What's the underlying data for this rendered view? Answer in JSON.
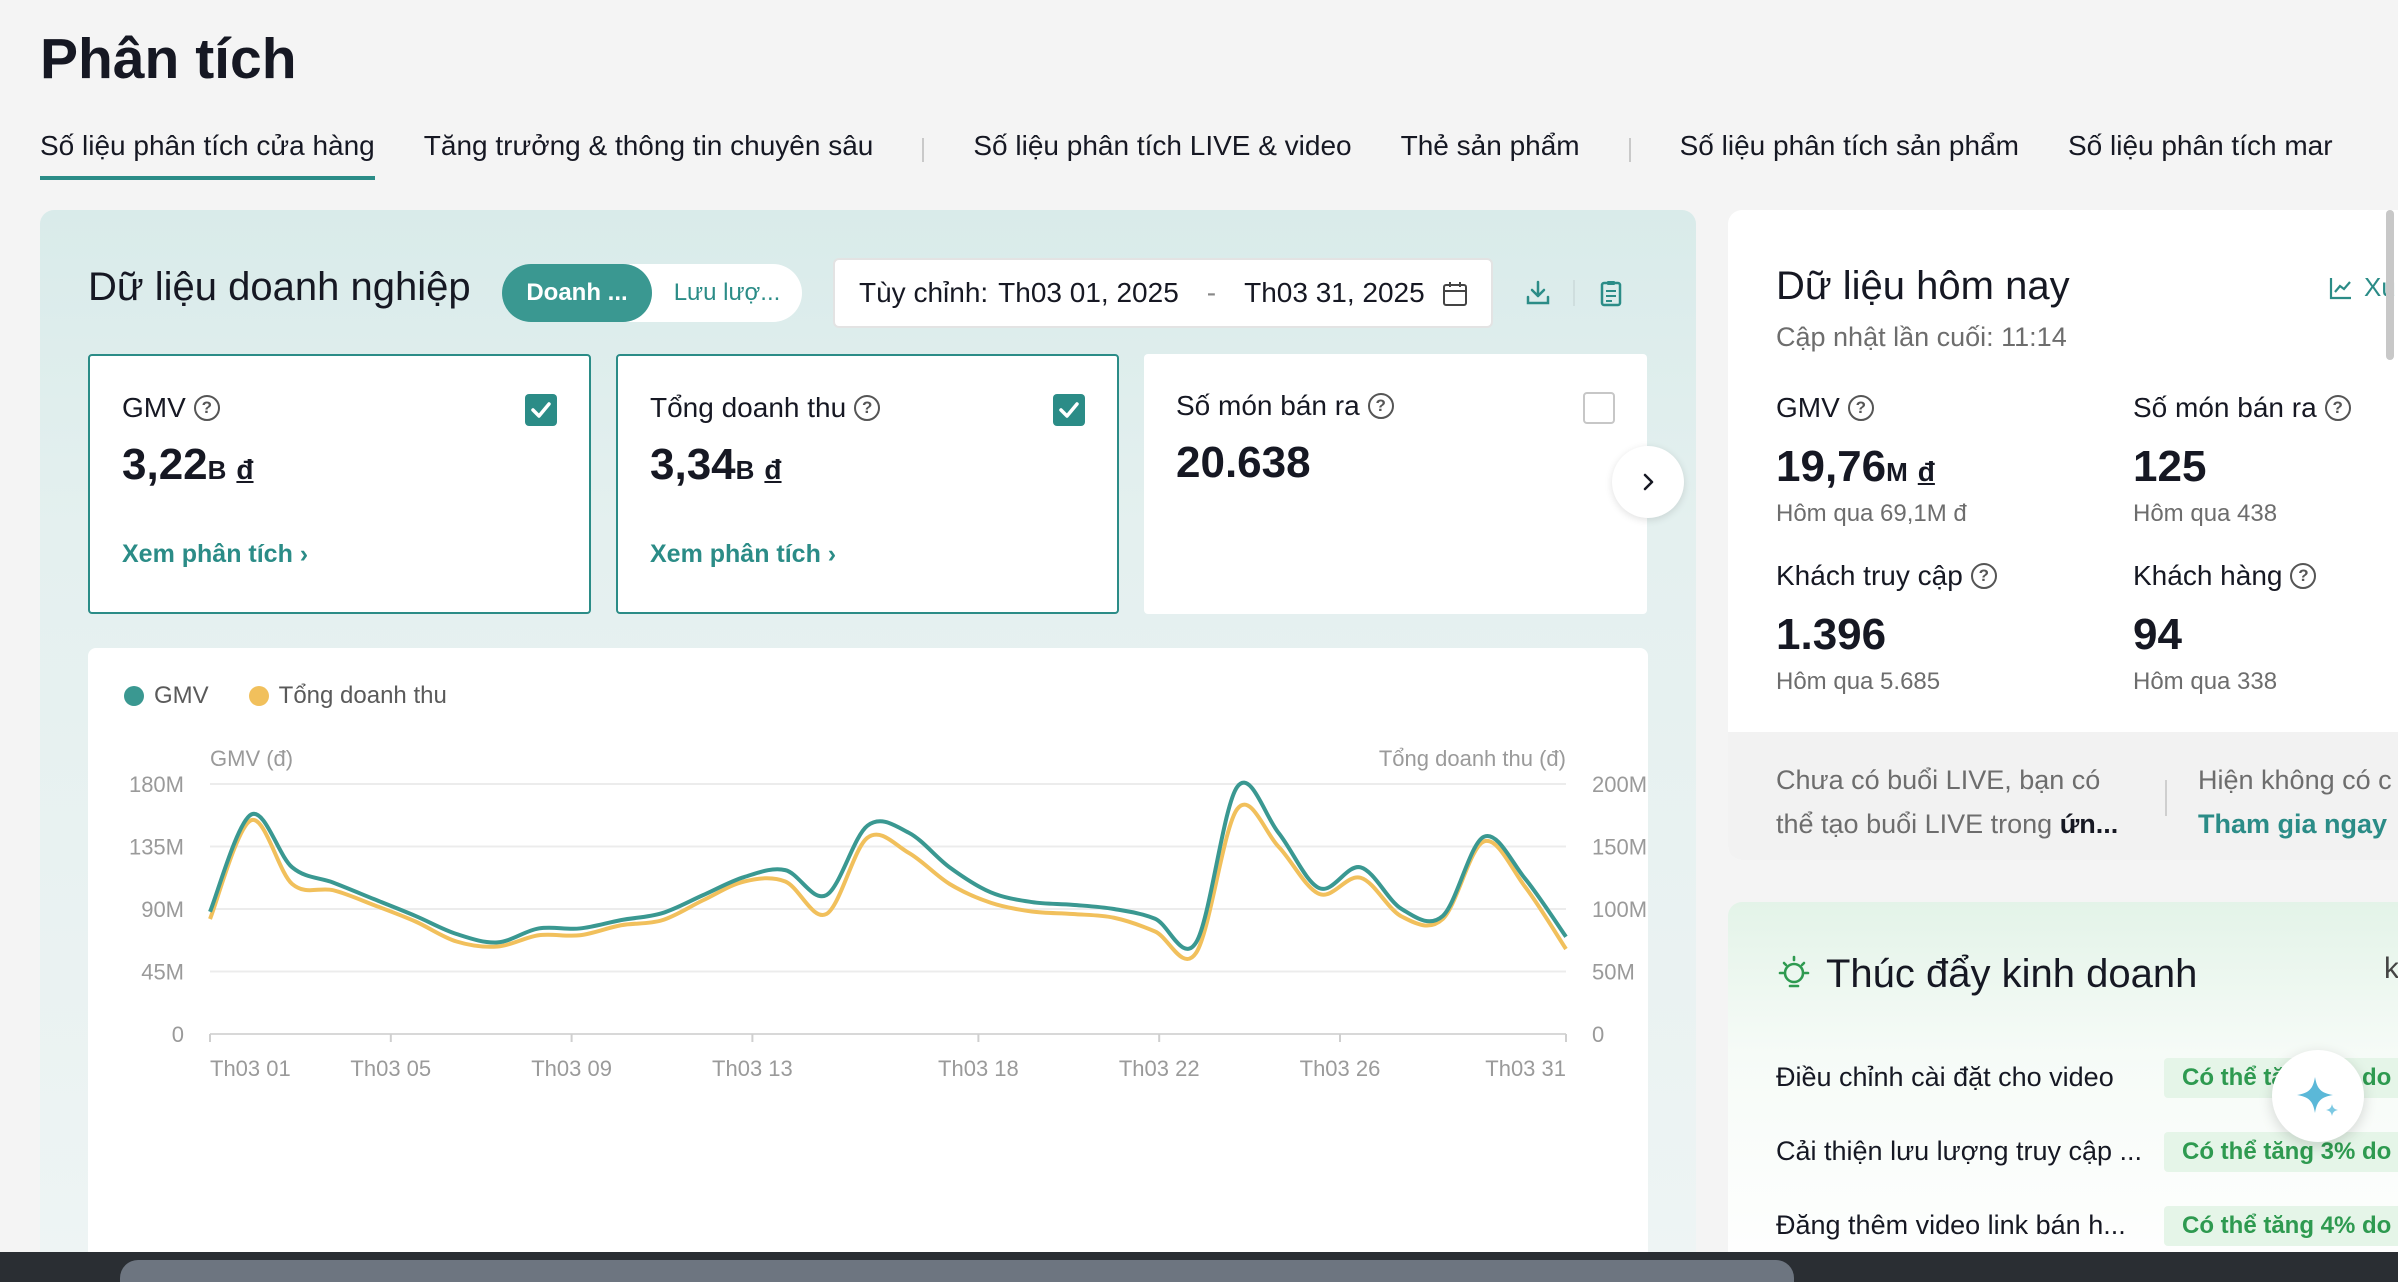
{
  "page": {
    "title": "Phân tích"
  },
  "tabs": [
    {
      "label": "Số liệu phân tích cửa hàng",
      "active": true
    },
    {
      "label": "Tăng trưởng & thông tin chuyên sâu"
    },
    {
      "label": "Số liệu phân tích LIVE & video"
    },
    {
      "label": "Thẻ sản phẩm"
    },
    {
      "label": "Số liệu phân tích sản phẩm"
    },
    {
      "label": "Số liệu phân tích mar"
    }
  ],
  "business": {
    "title": "Dữ liệu doanh nghiệp",
    "seg_revenue": "Doanh ...",
    "seg_traffic": "Lưu lượ...",
    "date_prefix": "Tùy chỉnh:",
    "date_start": "Th03 01, 2025",
    "date_sep": "-",
    "date_end": "Th03 31, 2025"
  },
  "metrics": [
    {
      "label": "GMV",
      "value": "3,22",
      "unit": "B",
      "currency": "đ",
      "link": "Xem phân tích ›",
      "checked": true
    },
    {
      "label": "Tổng doanh thu",
      "value": "3,34",
      "unit": "B",
      "currency": "đ",
      "link": "Xem phân tích ›",
      "checked": true
    },
    {
      "label": "Số món bán ra",
      "value": "20.638",
      "checked": false
    }
  ],
  "chart_data": {
    "type": "line",
    "series": [
      {
        "name": "GMV",
        "color": "#3a9891",
        "axis": "left",
        "values": [
          88,
          158,
          120,
          109,
          97,
          85,
          72,
          66,
          76,
          76,
          82,
          87,
          100,
          113,
          118,
          100,
          150,
          145,
          120,
          102,
          95,
          93,
          90,
          83,
          66,
          178,
          145,
          105,
          120,
          90,
          85,
          142,
          112,
          70
        ]
      },
      {
        "name": "Tổng doanh thu",
        "color": "#f1c05c",
        "axis": "right",
        "values": [
          92,
          171,
          120,
          115,
          103,
          90,
          74,
          70,
          79,
          79,
          87,
          91,
          107,
          122,
          122,
          96,
          157,
          145,
          120,
          105,
          98,
          96,
          93,
          82,
          65,
          180,
          150,
          112,
          125,
          94,
          92,
          154,
          118,
          68
        ]
      }
    ],
    "x_tick_labels": [
      "Th03 01",
      "Th03 05",
      "Th03 09",
      "Th03 13",
      "Th03 18",
      "Th03 22",
      "Th03 26",
      "Th03 31"
    ],
    "ylabel_left": "GMV (đ)",
    "ylabel_right": "Tổng doanh thu (đ)",
    "yticks_left": [
      "0",
      "45M",
      "90M",
      "135M",
      "180M"
    ],
    "yticks_right": [
      "0",
      "50M",
      "100M",
      "150M",
      "200M"
    ],
    "ylim_left": [
      0,
      180
    ],
    "ylim_right": [
      0,
      200
    ],
    "grid": true,
    "legend_position": "top-left"
  },
  "today": {
    "title": "Dữ liệu hôm nay",
    "updated": "Cập nhật lần cuối: 11:14",
    "export": "Xu",
    "stats": [
      {
        "label": "GMV",
        "value": "19,76",
        "unit": "M",
        "currency": "đ",
        "prev": "Hôm qua 69,1M đ"
      },
      {
        "label": "Số món bán ra",
        "value": "125",
        "prev": "Hôm qua 438"
      },
      {
        "label": "Khách truy cập",
        "value": "1.396",
        "prev": "Hôm qua 5.685"
      },
      {
        "label": "Khách hàng",
        "value": "94",
        "prev": "Hôm qua 338"
      }
    ],
    "live_text_1": "Chưa có buổi LIVE, bạn có",
    "live_text_2": "thể tạo buổi LIVE trong ",
    "live_text_bold": "ứn...",
    "live_right_1": "Hiện không có c",
    "live_right_join": "Tham gia ngay"
  },
  "boost": {
    "title": "Thúc đẩy kinh doanh",
    "title_trail": "k",
    "items": [
      {
        "label": "Điều chỉnh cài đặt cho video",
        "badge": "Có thể tăng 3% do"
      },
      {
        "label": "Cải thiện lưu lượng truy cập ...",
        "badge": "Có thể tăng 3% do"
      },
      {
        "label": "Đăng thêm video link bán h...",
        "badge": "Có thể tăng 4% do"
      }
    ]
  }
}
